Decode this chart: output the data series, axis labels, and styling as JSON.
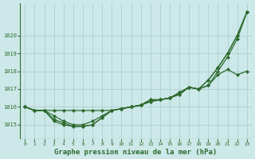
{
  "title": "Graphe pression niveau de la mer (hPa)",
  "background_color": "#cce8e8",
  "line_color": "#2d6a2d",
  "grid_color": "#aacaca",
  "x_ticks": [
    0,
    1,
    2,
    3,
    4,
    5,
    6,
    7,
    8,
    9,
    10,
    11,
    12,
    13,
    14,
    15,
    16,
    17,
    18,
    19,
    20,
    21,
    22,
    23
  ],
  "ylim": [
    1014.2,
    1021.8
  ],
  "yticks": [
    1015,
    1016,
    1017,
    1018,
    1019,
    1020
  ],
  "series": [
    [
      1016.0,
      1015.8,
      1015.8,
      1015.5,
      1015.2,
      1015.0,
      1015.0,
      1015.2,
      1015.5,
      1015.8,
      1015.9,
      1016.0,
      1016.1,
      1016.4,
      1016.4,
      1016.5,
      1016.7,
      1017.1,
      1017.0,
      1017.5,
      1018.2,
      1019.0,
      1020.0,
      1021.3
    ],
    [
      1016.0,
      1015.8,
      1015.8,
      1015.3,
      1015.1,
      1014.9,
      1014.9,
      1015.0,
      1015.4,
      1015.8,
      1015.9,
      1016.0,
      1016.1,
      1016.3,
      1016.4,
      1016.5,
      1016.8,
      1017.1,
      1017.0,
      1017.2,
      1017.8,
      1018.1,
      1017.8,
      1018.0
    ],
    [
      1016.0,
      1015.8,
      1015.8,
      1015.2,
      1015.0,
      1014.9,
      1014.9,
      1015.0,
      1015.4,
      1015.8,
      1015.9,
      1016.0,
      1016.1,
      1016.3,
      1016.4,
      1016.5,
      1016.8,
      1017.1,
      1017.0,
      1017.2,
      1018.0,
      1018.8,
      1019.8,
      1021.3
    ]
  ],
  "series2": [
    [
      1016.0,
      1015.8,
      1015.8,
      1015.3,
      1015.1,
      1015.0,
      1015.0,
      1015.3,
      1015.5,
      1015.8,
      1015.9,
      1016.0,
      1016.2,
      1016.4,
      1016.4,
      1016.5,
      1016.7,
      1017.0,
      1017.0,
      1017.8,
      1018.2,
      1019.0,
      1019.8,
      1021.3
    ]
  ],
  "line_flat": [
    1016.0,
    1015.8,
    1015.8,
    1015.8,
    1015.8,
    1015.8,
    1015.8,
    1015.8,
    1015.8,
    1015.8,
    1015.8,
    1015.8,
    1015.8,
    1015.8,
    1015.8,
    1015.8,
    1016.5,
    1017.1,
    1017.0,
    1017.5,
    1018.2,
    1019.0,
    1020.0,
    1021.3
  ]
}
